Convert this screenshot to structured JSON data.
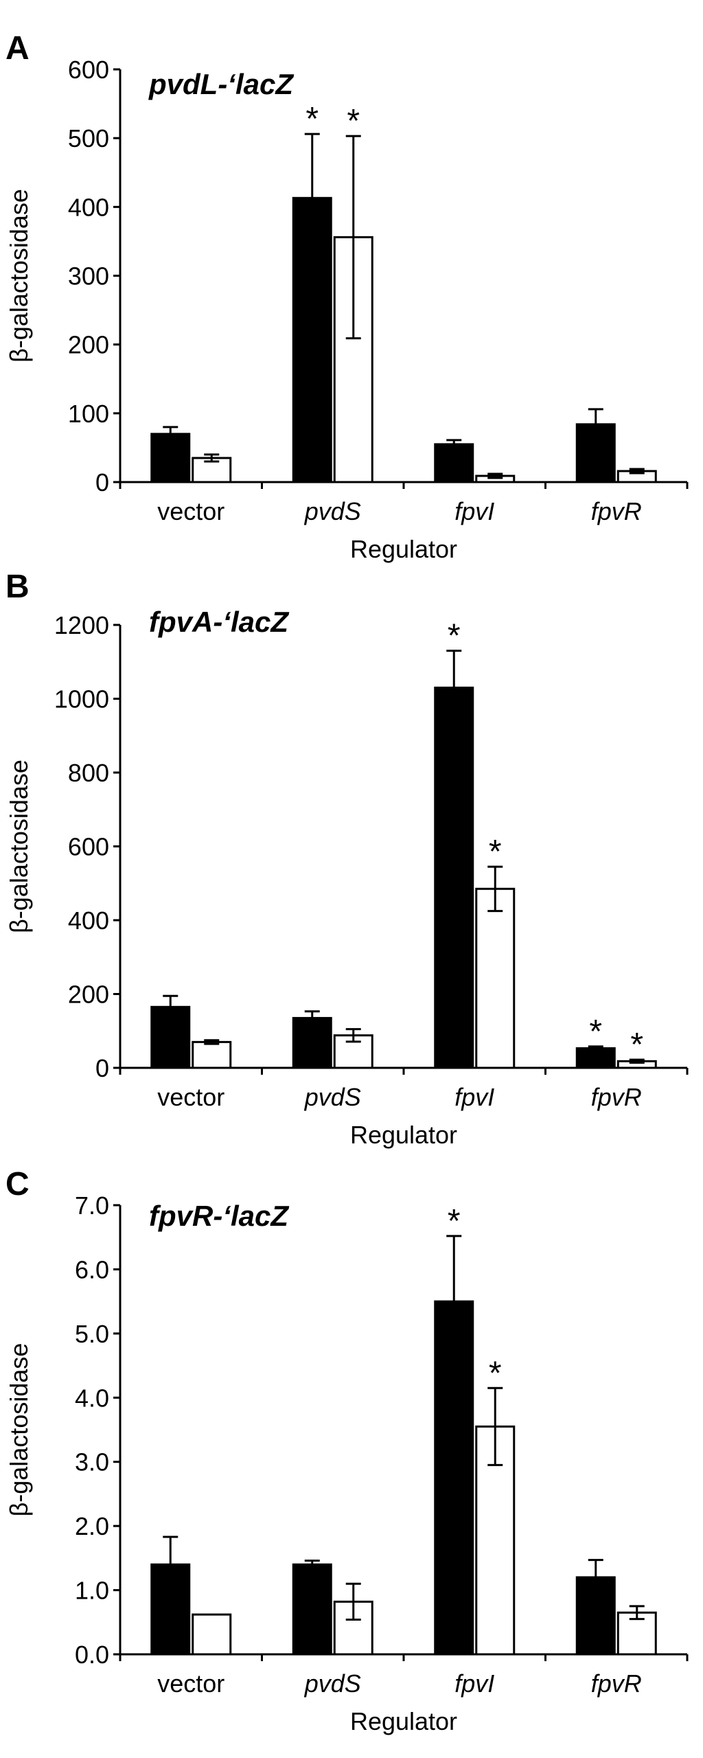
{
  "chart_data": [
    {
      "type": "bar",
      "panel_label": "A",
      "title": "pvdL-‘lacZ",
      "xlabel": "Regulator",
      "ylabel": "β-galactosidase",
      "ylim": [
        0,
        600
      ],
      "yticks": [
        "0",
        "100",
        "200",
        "300",
        "400",
        "500",
        "600"
      ],
      "categories": [
        "vector",
        "pvdS",
        "fpvI",
        "fpvR"
      ],
      "italic_categories": [
        false,
        true,
        true,
        true
      ],
      "series": [
        {
          "fill": "#000000",
          "values": [
            70,
            413,
            55,
            84
          ],
          "errors": [
            10,
            93,
            6,
            22
          ],
          "significant": [
            false,
            true,
            false,
            false
          ]
        },
        {
          "fill": "#ffffff",
          "values": [
            35,
            356,
            9,
            16
          ],
          "errors": [
            5,
            147,
            3,
            3
          ],
          "significant": [
            false,
            true,
            false,
            false
          ]
        }
      ]
    },
    {
      "type": "bar",
      "panel_label": "B",
      "title": "fpvA-‘lacZ",
      "xlabel": "Regulator",
      "ylabel": "β-galactosidase",
      "ylim": [
        0,
        1200
      ],
      "yticks": [
        "0",
        "200",
        "400",
        "600",
        "800",
        "1000",
        "1200"
      ],
      "categories": [
        "vector",
        "pvdS",
        "fpvI",
        "fpvR"
      ],
      "italic_categories": [
        false,
        true,
        true,
        true
      ],
      "series": [
        {
          "fill": "#000000",
          "values": [
            165,
            135,
            1030,
            53
          ],
          "errors": [
            30,
            18,
            100,
            5
          ],
          "significant": [
            false,
            false,
            true,
            true
          ]
        },
        {
          "fill": "#ffffff",
          "values": [
            70,
            88,
            485,
            18
          ],
          "errors": [
            5,
            17,
            60,
            4
          ],
          "significant": [
            false,
            false,
            true,
            true
          ]
        }
      ]
    },
    {
      "type": "bar",
      "panel_label": "C",
      "title": "fpvR-‘lacZ",
      "xlabel": "Regulator",
      "ylabel": "β-galactosidase",
      "ylim": [
        0,
        7
      ],
      "yticks": [
        "0.0",
        "1.0",
        "2.0",
        "3.0",
        "4.0",
        "5.0",
        "6.0",
        "7.0"
      ],
      "categories": [
        "vector",
        "pvdS",
        "fpvI",
        "fpvR"
      ],
      "italic_categories": [
        false,
        true,
        true,
        true
      ],
      "series": [
        {
          "fill": "#000000",
          "values": [
            1.4,
            1.4,
            5.5,
            1.2
          ],
          "errors": [
            0.43,
            0.06,
            1.02,
            0.27
          ],
          "significant": [
            false,
            false,
            true,
            false
          ]
        },
        {
          "fill": "#ffffff",
          "values": [
            0.62,
            0.82,
            3.55,
            0.65
          ],
          "errors": [
            0,
            0.28,
            0.6,
            0.1
          ],
          "significant": [
            false,
            false,
            true,
            false
          ]
        }
      ]
    }
  ]
}
